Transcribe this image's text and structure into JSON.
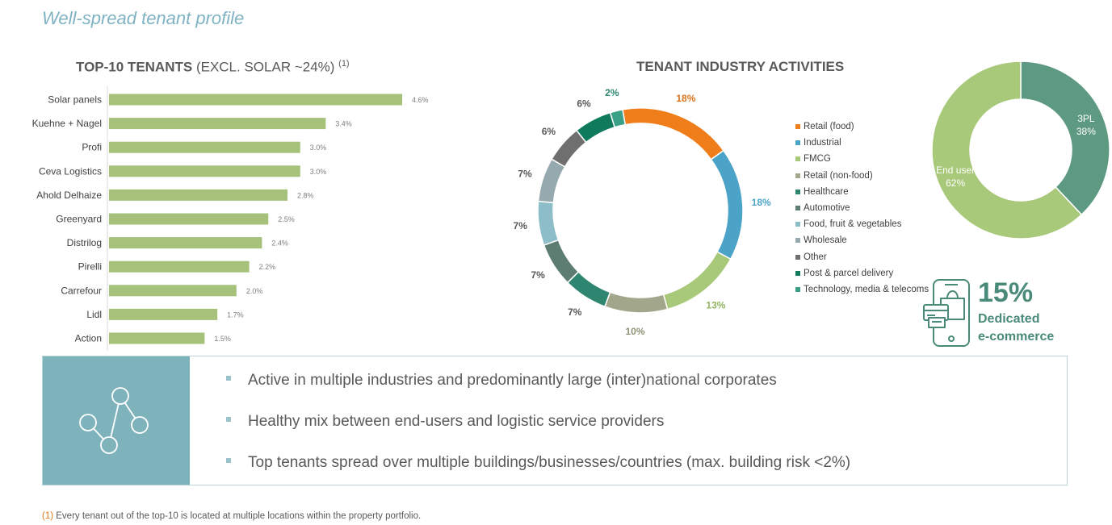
{
  "page_title": "Well-spread tenant profile",
  "bar_section": {
    "title_bold": "TOP-10 TENANTS",
    "title_light": " (EXCL. SOLAR ~24%) ",
    "title_sup": "(1)"
  },
  "donut_section": {
    "title": "TENANT INDUSTRY ACTIVITIES"
  },
  "ecommerce": {
    "percent": "15%",
    "line1": "Dedicated",
    "line2": "e-commerce",
    "icon": "phone-shopping-bag-icon"
  },
  "bullets": [
    "Active in multiple industries and predominantly large (inter)national corporates",
    "Healthy mix between end-users and logistic service providers",
    "Top tenants spread over multiple buildings/businesses/countries (max. building risk <2%)"
  ],
  "info_icon": "network-nodes-icon",
  "footnote": {
    "mark": "(1)",
    "text": " Every tenant out of the top-10 is located at multiple locations within the property portfolio."
  },
  "chart_data": [
    {
      "type": "bar",
      "orientation": "horizontal",
      "categories": [
        "Solar panels",
        "Kuehne + Nagel",
        "Profi",
        "Ceva Logistics",
        "Ahold Delhaize",
        "Greenyard",
        "Distrilog",
        "Pirelli",
        "Carrefour",
        "Lidl",
        "Action"
      ],
      "values": [
        4.6,
        3.4,
        3.0,
        3.0,
        2.8,
        2.5,
        2.4,
        2.2,
        2.0,
        1.7,
        1.5
      ],
      "labels": [
        "4.6%",
        "3.4%",
        "3.0%",
        "3.0%",
        "2.8%",
        "2.5%",
        "2.4%",
        "2.2%",
        "2.0%",
        "1.7%",
        "1.5%"
      ],
      "bar_color": "#a6c17a",
      "xlim": [
        0,
        4.6
      ]
    },
    {
      "type": "pie",
      "donut": true,
      "slices": [
        {
          "name": "Retail (food)",
          "value": 18,
          "label": "18%",
          "color": "#ef7d1a",
          "label_color": "#d9731a"
        },
        {
          "name": "Industrial",
          "value": 18,
          "label": "18%",
          "color": "#4ba3c7",
          "label_color": "#4ba3c7"
        },
        {
          "name": "FMCG",
          "value": 13,
          "label": "13%",
          "color": "#a8c87a",
          "label_color": "#8fb35f"
        },
        {
          "name": "Retail (non-food)",
          "value": 10,
          "label": "10%",
          "color": "#a2a68a",
          "label_color": "#8f9474"
        },
        {
          "name": "Healthcare",
          "value": 7,
          "label": "7%",
          "color": "#2e8570",
          "label_color": "#595959"
        },
        {
          "name": "Automotive",
          "value": 7,
          "label": "7%",
          "color": "#5d7c72",
          "label_color": "#595959"
        },
        {
          "name": "Food, fruit & vegetables",
          "value": 7,
          "label": "7%",
          "color": "#8cbdc8",
          "label_color": "#595959"
        },
        {
          "name": "Wholesale",
          "value": 7,
          "label": "7%",
          "color": "#95a9ae",
          "label_color": "#595959"
        },
        {
          "name": "Other",
          "value": 6,
          "label": "6%",
          "color": "#6f6f6f",
          "label_color": "#595959"
        },
        {
          "name": "Post & parcel delivery",
          "value": 6,
          "label": "6%",
          "color": "#0f7a5c",
          "label_color": "#595959"
        },
        {
          "name": "Technology, media & telecoms",
          "value": 2,
          "label": "2%",
          "color": "#3aa088",
          "label_color": "#2e8570"
        }
      ]
    },
    {
      "type": "pie",
      "donut": true,
      "slices": [
        {
          "name": "3PL",
          "value": 38,
          "label": "38%",
          "color": "#5e9a82"
        },
        {
          "name": "End user",
          "value": 62,
          "label": "62%",
          "color": "#a8c87a"
        }
      ]
    }
  ]
}
